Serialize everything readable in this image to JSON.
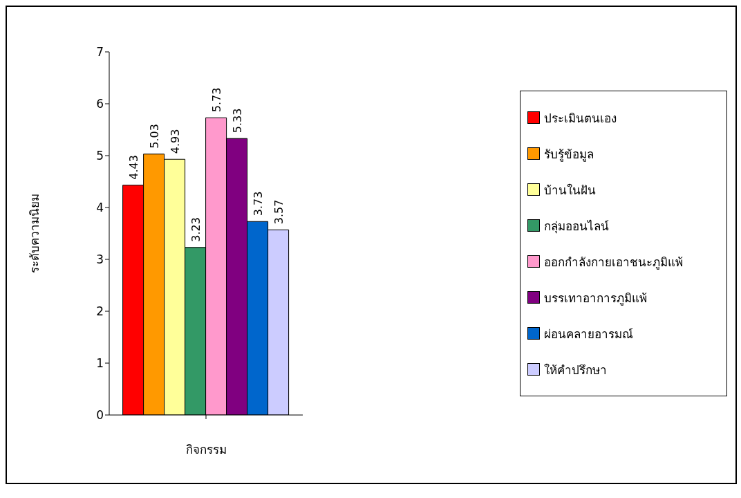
{
  "chart_data": {
    "type": "bar",
    "xlabel": "กิจกรรม",
    "ylabel": "ระดับความนิยม",
    "categories": [
      null
    ],
    "series": [
      {
        "name": "ประเมินตนเอง",
        "color": "#ff0000",
        "values": [
          4.43
        ]
      },
      {
        "name": "รับรู้ข้อมูล",
        "color": "#ff9900",
        "values": [
          5.03
        ]
      },
      {
        "name": "บ้านในฝัน",
        "color": "#ffff99",
        "values": [
          4.93
        ]
      },
      {
        "name": "กลุ่มออนไลน์",
        "color": "#339966",
        "values": [
          3.23
        ]
      },
      {
        "name": "ออกกำลังกายเอาชนะภูมิแพ้",
        "color": "#ff99cc",
        "values": [
          5.73
        ]
      },
      {
        "name": "บรรเทาอาการภูมิแพ้",
        "color": "#800080",
        "values": [
          5.33
        ]
      },
      {
        "name": "ผ่อนคลายอารมณ์",
        "color": "#0066cc",
        "values": [
          3.73
        ]
      },
      {
        "name": "ให้คำปรึกษา",
        "color": "#ccccff",
        "values": [
          3.57
        ]
      }
    ],
    "ylim": [
      0,
      7
    ],
    "yticks": [
      0,
      1,
      2,
      3,
      4,
      5,
      6,
      7
    ],
    "grid": false,
    "legend": "right",
    "data_labels": true
  }
}
